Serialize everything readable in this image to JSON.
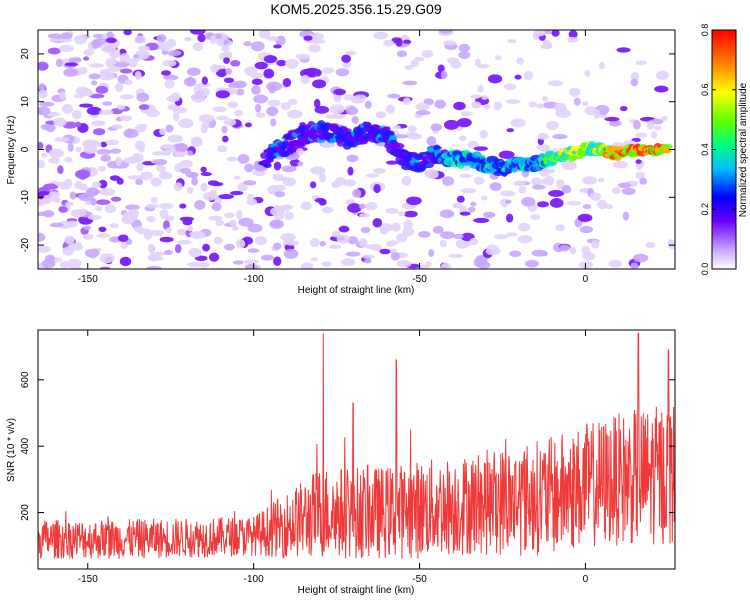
{
  "figure": {
    "title": "KOM5.2025.356.15.29.G09"
  },
  "colors": {
    "snr_line": "#ef3a3a",
    "axis": "#000000",
    "background": "#ffffff"
  },
  "chart_data": [
    {
      "type": "heatmap",
      "title": "KOM5.2025.356.15.29.G09",
      "xlabel": "Height of straight line (km)",
      "ylabel": "Frequency (Hz)",
      "xlim": [
        -165,
        27
      ],
      "ylim": [
        -25,
        25
      ],
      "xticks": [
        -150,
        -100,
        -50,
        0
      ],
      "yticks": [
        -20,
        -10,
        0,
        10,
        20
      ],
      "ridge": {
        "description_points_x_km": [
          -97,
          -90,
          -85,
          -80,
          -75,
          -70,
          -65,
          -60,
          -55,
          -50,
          -45,
          -40,
          -35,
          -30,
          -25,
          -20,
          -15,
          -10,
          -5,
          0,
          5,
          10,
          15,
          20,
          25
        ],
        "description_points_freq_hz": [
          -2,
          1,
          3,
          4,
          3,
          2,
          4,
          3,
          -2,
          -3,
          -1,
          -2,
          -2,
          -3,
          -4,
          -3,
          -3,
          -2,
          -1,
          0,
          0,
          -1,
          0,
          0,
          0
        ]
      },
      "colorbar": {
        "label": "Normalized spectral amplitude",
        "range": [
          0.0,
          0.8
        ],
        "ticks": [
          0.0,
          0.2,
          0.4,
          0.6,
          0.8
        ],
        "tick_labels": [
          "0.0",
          "0.2",
          "0.4",
          "0.6",
          "0.8"
        ]
      }
    },
    {
      "type": "line",
      "xlabel": "Height of straight line (km)",
      "ylabel": "SNR (10 * v/v)",
      "xlim": [
        -165,
        27
      ],
      "ylim": [
        30,
        750
      ],
      "xticks": [
        -150,
        -100,
        -50,
        0
      ],
      "yticks": [
        200,
        400,
        600
      ],
      "series": [
        {
          "name": "SNR",
          "color": "#ef3a3a",
          "envelope_x_km": [
            -165,
            -140,
            -115,
            -100,
            -85,
            -80,
            -70,
            -60,
            -50,
            -40,
            -30,
            -20,
            -10,
            0,
            10,
            20,
            27
          ],
          "envelope_baseline": [
            120,
            120,
            125,
            130,
            180,
            200,
            200,
            200,
            210,
            220,
            230,
            240,
            250,
            280,
            300,
            310,
            320
          ],
          "envelope_spread": [
            60,
            60,
            60,
            60,
            120,
            140,
            140,
            140,
            150,
            150,
            160,
            170,
            180,
            190,
            200,
            210,
            220
          ],
          "peaks": [
            {
              "x": -79,
              "y": 740
            },
            {
              "x": -70,
              "y": 530
            },
            {
              "x": -57,
              "y": 660
            },
            {
              "x": 16,
              "y": 740
            },
            {
              "x": 25,
              "y": 690
            }
          ]
        }
      ]
    }
  ]
}
